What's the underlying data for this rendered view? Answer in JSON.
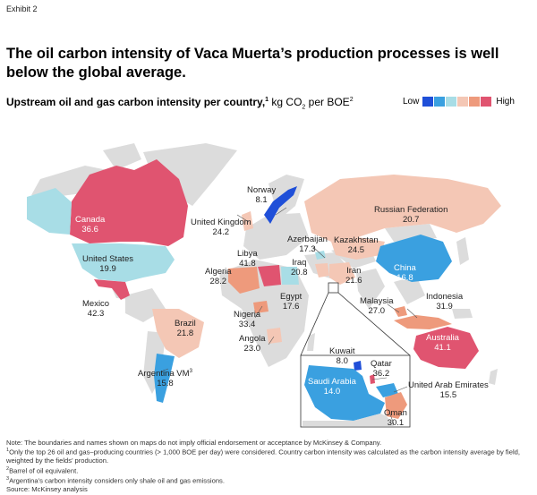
{
  "exhibit": "Exhibit 2",
  "title": "The oil carbon intensity of Vaca Muerta’s production processes is well below the global average.",
  "subtitle": {
    "bold": "Upstream oil and gas carbon intensity per country,",
    "sup1": "1",
    "unit_a": " kg CO",
    "unit_sub": "2",
    "unit_b": " per BOE",
    "sup2": "2"
  },
  "legend": {
    "low": "Low",
    "high": "High",
    "colors": [
      "#1f4fd8",
      "#3aa0e0",
      "#a8dde6",
      "#f4c7b5",
      "#ee9a7c",
      "#e05470"
    ]
  },
  "countries": [
    {
      "name": "Norway",
      "value": "8.1"
    },
    {
      "name": "Canada",
      "value": "36.6"
    },
    {
      "name": "United Kingdom",
      "value": "24.2"
    },
    {
      "name": "Russian Federation",
      "value": "20.7"
    },
    {
      "name": "Azerbaijan",
      "value": "17.3"
    },
    {
      "name": "Kazakhstan",
      "value": "24.5"
    },
    {
      "name": "Libya",
      "value": "41.8"
    },
    {
      "name": "Iraq",
      "value": "20.8"
    },
    {
      "name": "United States",
      "value": "19.9"
    },
    {
      "name": "Iran",
      "value": "21.6"
    },
    {
      "name": "China",
      "value": "16.8"
    },
    {
      "name": "Algeria",
      "value": "28.2"
    },
    {
      "name": "Egypt",
      "value": "17.6"
    },
    {
      "name": "Malaysia",
      "value": "27.0"
    },
    {
      "name": "Indonesia",
      "value": "31.9"
    },
    {
      "name": "Mexico",
      "value": "42.3"
    },
    {
      "name": "Nigeria",
      "value": "33.4"
    },
    {
      "name": "Brazil",
      "value": "21.8"
    },
    {
      "name": "Angola",
      "value": "23.0"
    },
    {
      "name": "Australia",
      "value": "41.1"
    },
    {
      "name": "Kuwait",
      "value": "8.0"
    },
    {
      "name": "Qatar",
      "value": "36.2"
    },
    {
      "name": "Saudi Arabia",
      "value": "14.0"
    },
    {
      "name": "United Arab Emirates",
      "value": "15.5"
    },
    {
      "name": "Oman",
      "value": "30.1"
    },
    {
      "name": "Argentina VM",
      "sup": "3",
      "value": "15.8"
    }
  ],
  "notes": [
    {
      "text": "Note: The boundaries and names shown on maps do not imply official endorsement or acceptance by McKinsey & Company."
    },
    {
      "sup": "1",
      "text": "Only the top 26 oil and gas–producing countries (> 1,000 BOE per day) were considered. Country carbon intensity was calculated as the carbon intensity average by field, weighted by the fields’ production."
    },
    {
      "sup": "2",
      "text": "Barrel of oil equivalent."
    },
    {
      "sup": "3",
      "text": "Argentina’s carbon intensity considers only shale oil and gas emissions."
    },
    {
      "text": "Source: McKinsey analysis"
    }
  ]
}
